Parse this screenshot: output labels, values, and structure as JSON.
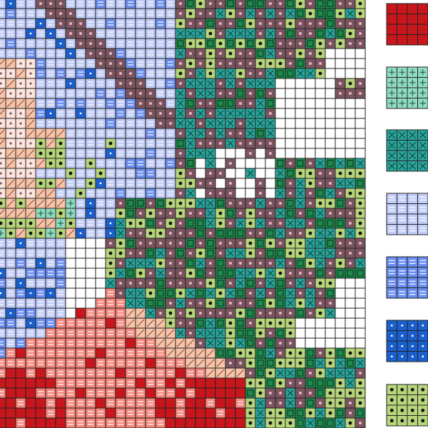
{
  "legend": {
    "swatches": [
      {
        "color": "#c8171c"
      },
      {
        "color": "#8fdcc0"
      },
      {
        "color": "#2aa39a"
      },
      {
        "color": "#c2cdf8"
      },
      {
        "color": "#6b8ef0"
      },
      {
        "color": "#1b5fcc"
      },
      {
        "color": "#b6d47a"
      }
    ]
  }
}
